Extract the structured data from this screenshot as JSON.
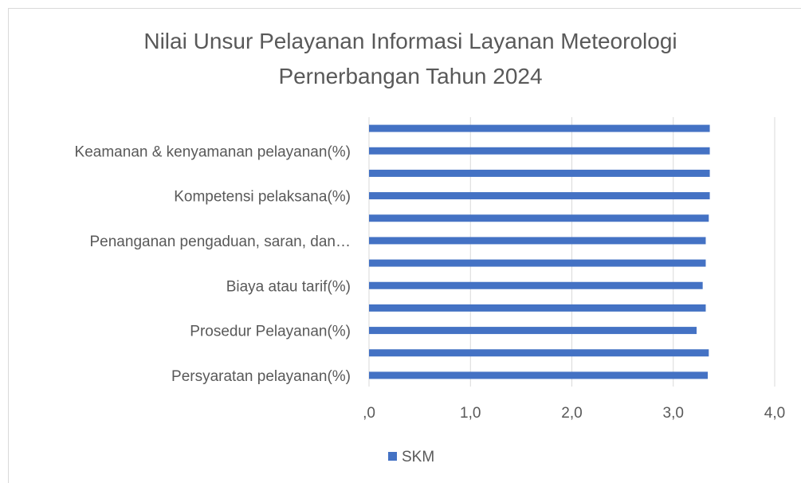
{
  "chart_data": {
    "type": "bar",
    "orientation": "horizontal",
    "title": "Nilai Unsur Pelayanan Informasi Layanan Meteorologi Pernerbangan Tahun 2024",
    "categories": [
      "Persyaratan pelayanan(%)",
      null,
      "Prosedur Pelayanan(%)",
      null,
      "Biaya atau tarif(%)",
      null,
      "Penanganan pengaduan, saran, dan…",
      null,
      "Kompetensi pelaksana(%)",
      null,
      "Keamanan & kenyamanan pelayanan(%)",
      null
    ],
    "series": [
      {
        "name": "SKM",
        "color": "#4472c4",
        "values": [
          3.34,
          3.35,
          3.23,
          3.32,
          3.29,
          3.32,
          3.32,
          3.35,
          3.36,
          3.36,
          3.36,
          3.36
        ]
      }
    ],
    "xlim": [
      0,
      4
    ],
    "xticks": [
      {
        "value": 0,
        "label": ",0"
      },
      {
        "value": 1,
        "label": "1,0"
      },
      {
        "value": 2,
        "label": "2,0"
      },
      {
        "value": 3,
        "label": "3,0"
      },
      {
        "value": 4,
        "label": "4,0"
      }
    ],
    "grid": true,
    "legend": "bottom"
  }
}
